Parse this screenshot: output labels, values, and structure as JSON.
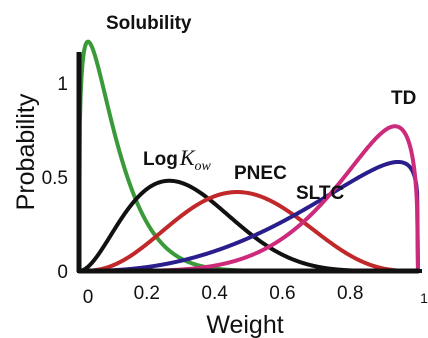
{
  "chart_data": {
    "type": "line",
    "title": "",
    "xlabel": "Weight",
    "ylabel": "Probability",
    "xlim": [
      0,
      1
    ],
    "ylim": [
      0,
      1.3
    ],
    "x_ticks": [
      "0",
      "0.2",
      "0.4",
      "0.6",
      "0.8",
      "1"
    ],
    "y_ticks": [
      "0",
      "0.5",
      "1"
    ],
    "grid": false,
    "series": [
      {
        "name": "Solubility",
        "color": "#3a9a3a",
        "alpha": 1.3,
        "beta": 12.0,
        "x": [
          0,
          0.02,
          0.05,
          0.1,
          0.15,
          0.2,
          0.3,
          0.4,
          0.5,
          0.6,
          0.7,
          0.8,
          0.9,
          1.0
        ],
        "values": [
          0,
          1.18,
          1.22,
          0.98,
          0.71,
          0.49,
          0.21,
          0.08,
          0.03,
          0.01,
          0,
          0,
          0,
          0
        ]
      },
      {
        "name": "LogKow",
        "label_main": "Log",
        "label_k": "K",
        "label_sub": "ow",
        "color": "#111111",
        "alpha": 3.0,
        "beta": 6.5,
        "x": [
          0,
          0.1,
          0.2,
          0.27,
          0.3,
          0.4,
          0.5,
          0.6,
          0.7,
          0.8,
          0.9,
          1.0
        ],
        "values": [
          0,
          0.17,
          0.44,
          0.48,
          0.47,
          0.36,
          0.21,
          0.09,
          0.03,
          0.01,
          0,
          0
        ]
      },
      {
        "name": "PNEC",
        "color": "#c0282a",
        "alpha": 3.8,
        "beta": 4.2,
        "x": [
          0,
          0.1,
          0.2,
          0.3,
          0.4,
          0.46,
          0.5,
          0.6,
          0.7,
          0.8,
          0.9,
          1.0
        ],
        "values": [
          0,
          0.02,
          0.13,
          0.29,
          0.4,
          0.42,
          0.41,
          0.31,
          0.16,
          0.05,
          0.01,
          0
        ]
      },
      {
        "name": "SLTC",
        "color": "#2a1e8c",
        "alpha": 3.4,
        "beta": 1.15,
        "x": [
          0,
          0.1,
          0.2,
          0.3,
          0.4,
          0.5,
          0.6,
          0.7,
          0.8,
          0.9,
          0.96,
          1.0
        ],
        "values": [
          0,
          0.0,
          0.01,
          0.03,
          0.06,
          0.11,
          0.18,
          0.27,
          0.39,
          0.54,
          0.58,
          0
        ]
      },
      {
        "name": "TD",
        "color": "#cc2a7a",
        "alpha": 5.8,
        "beta": 1.35,
        "x": [
          0,
          0.1,
          0.2,
          0.3,
          0.4,
          0.5,
          0.6,
          0.7,
          0.8,
          0.9,
          0.96,
          1.0
        ],
        "values": [
          0,
          0.0,
          0.0,
          0.0,
          0.01,
          0.02,
          0.05,
          0.13,
          0.3,
          0.6,
          0.77,
          0
        ]
      },
      {
        "name": "",
        "color": "#111111",
        "note": "spike at x=0 and baseline",
        "x": [
          0,
          0,
          1
        ],
        "values": [
          1.15,
          0,
          0
        ]
      }
    ]
  }
}
